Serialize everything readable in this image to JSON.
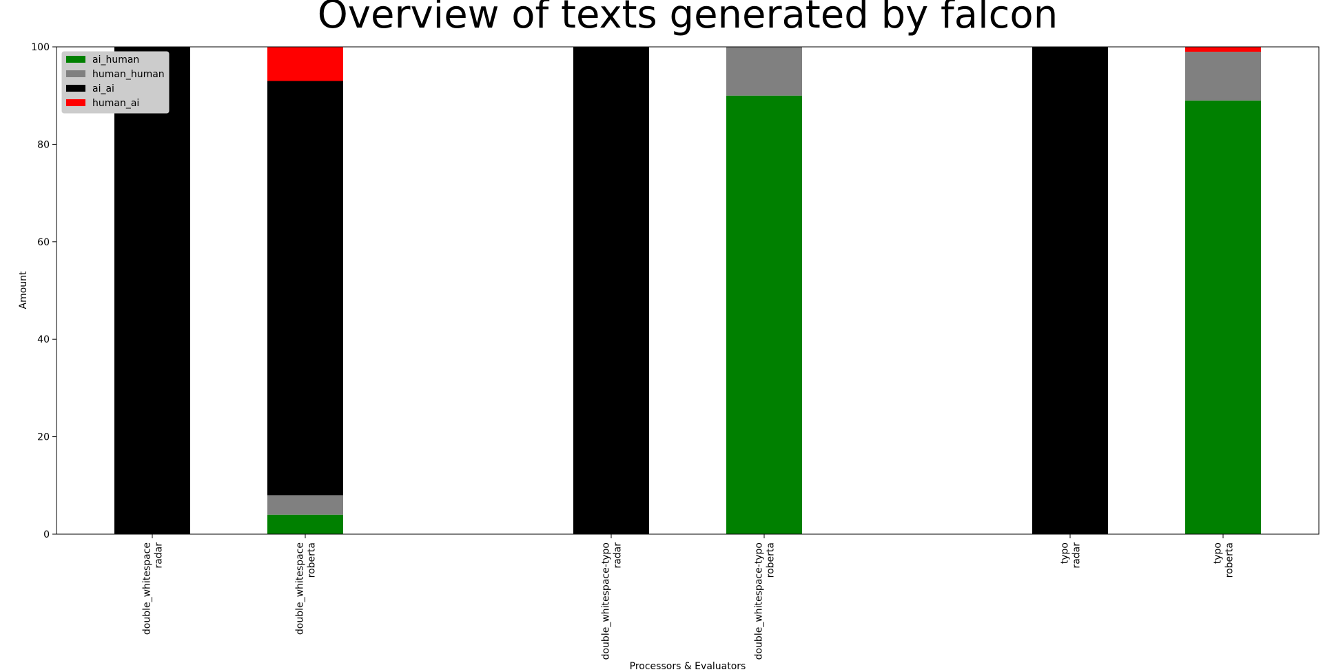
{
  "chart_data": {
    "type": "bar",
    "stacked": true,
    "title": "Overview of texts generated by falcon",
    "xlabel": "Processors & Evaluators",
    "ylabel": "Amount",
    "ylim": [
      0,
      100
    ],
    "yticks": [
      0,
      20,
      40,
      60,
      80,
      100
    ],
    "grid": false,
    "legend_position": "top-left",
    "categories": [
      [
        "double_whitespace",
        "radar"
      ],
      [
        "double_whitespace",
        "roberta"
      ],
      [
        "double_whitespace-typo",
        "radar"
      ],
      [
        "double_whitespace-typo",
        "roberta"
      ],
      [
        "typo",
        "radar"
      ],
      [
        "typo",
        "roberta"
      ]
    ],
    "x_positions": [
      0,
      1,
      3,
      4,
      6,
      7
    ],
    "series": [
      {
        "name": "ai_human",
        "color": "#008000",
        "values": [
          0,
          4,
          0,
          90,
          0,
          89
        ]
      },
      {
        "name": "human_human",
        "color": "#808080",
        "values": [
          0,
          4,
          0,
          10,
          0,
          10
        ]
      },
      {
        "name": "ai_ai",
        "color": "#000000",
        "values": [
          100,
          85,
          100,
          0,
          100,
          0
        ]
      },
      {
        "name": "human_ai",
        "color": "#ff0000",
        "values": [
          0,
          7,
          0,
          0,
          0,
          1
        ]
      }
    ]
  }
}
